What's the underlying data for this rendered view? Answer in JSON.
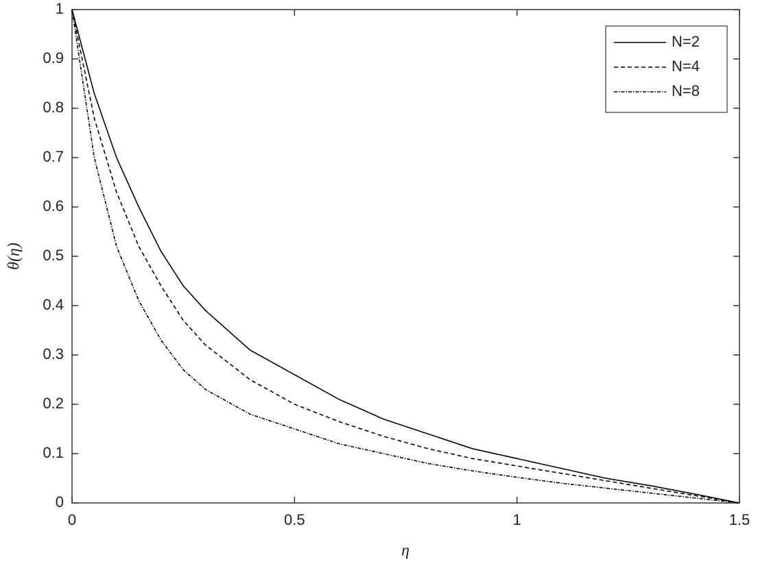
{
  "chart_data": {
    "type": "line",
    "x_label": "η",
    "y_label": "θ(η)",
    "x": [
      0,
      0.05,
      0.1,
      0.15,
      0.2,
      0.25,
      0.3,
      0.4,
      0.5,
      0.6,
      0.7,
      0.8,
      0.9,
      1.0,
      1.1,
      1.2,
      1.3,
      1.4,
      1.5
    ],
    "series": [
      {
        "name": "N=2",
        "color": "#000000",
        "dash": "solid",
        "values": [
          1,
          0.83,
          0.7,
          0.6,
          0.51,
          0.44,
          0.39,
          0.31,
          0.26,
          0.21,
          0.17,
          0.14,
          0.11,
          0.09,
          0.07,
          0.05,
          0.035,
          0.018,
          0
        ]
      },
      {
        "name": "N=4",
        "color": "#000000",
        "dash": "dashed",
        "values": [
          1,
          0.78,
          0.63,
          0.52,
          0.44,
          0.37,
          0.32,
          0.25,
          0.2,
          0.165,
          0.135,
          0.11,
          0.09,
          0.075,
          0.06,
          0.045,
          0.03,
          0.015,
          0
        ]
      },
      {
        "name": "N=8",
        "color": "#000000",
        "dash": "dashdot",
        "values": [
          1,
          0.7,
          0.52,
          0.41,
          0.33,
          0.27,
          0.23,
          0.18,
          0.15,
          0.12,
          0.1,
          0.08,
          0.065,
          0.052,
          0.04,
          0.03,
          0.02,
          0.01,
          0
        ]
      }
    ],
    "xlim": [
      0,
      1.5
    ],
    "xticks": [
      0,
      0.5,
      1,
      1.5
    ],
    "ylim": [
      0,
      1
    ],
    "yticks": [
      0,
      0.1,
      0.2,
      0.3,
      0.4,
      0.5,
      0.6,
      0.7,
      0.8,
      0.9,
      1
    ],
    "grid": false,
    "legend": "top-right"
  }
}
